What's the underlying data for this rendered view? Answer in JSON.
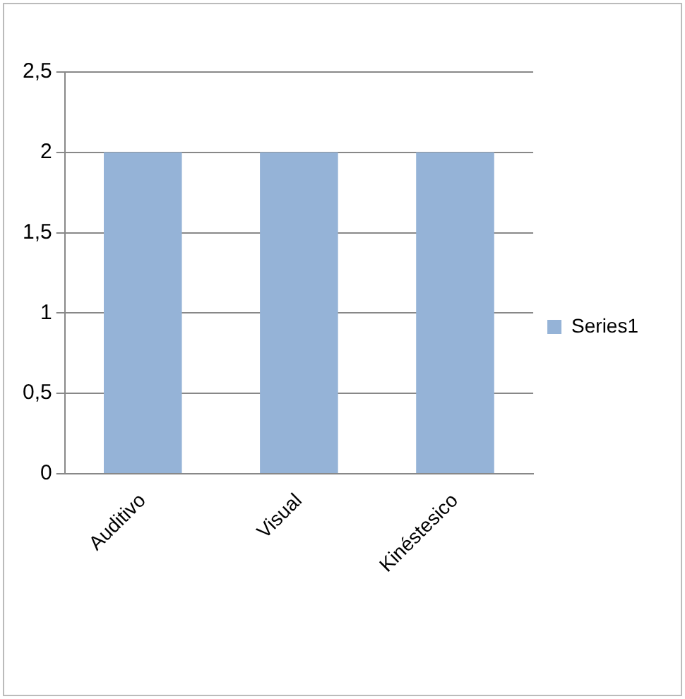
{
  "chart_data": {
    "type": "bar",
    "categories": [
      "Auditivo",
      "Visual",
      "Kinéstesico"
    ],
    "series": [
      {
        "name": "Series1",
        "color": "#95b3d7",
        "values": [
          2,
          2,
          2
        ]
      }
    ],
    "ylim": [
      0,
      2.5
    ],
    "yticks": [
      {
        "value": 0,
        "label": "0"
      },
      {
        "value": 0.5,
        "label": "0,5"
      },
      {
        "value": 1,
        "label": "1"
      },
      {
        "value": 1.5,
        "label": "1,5"
      },
      {
        "value": 2,
        "label": "2"
      },
      {
        "value": 2.5,
        "label": "2,5"
      }
    ],
    "grid": "y",
    "legend": "right"
  }
}
